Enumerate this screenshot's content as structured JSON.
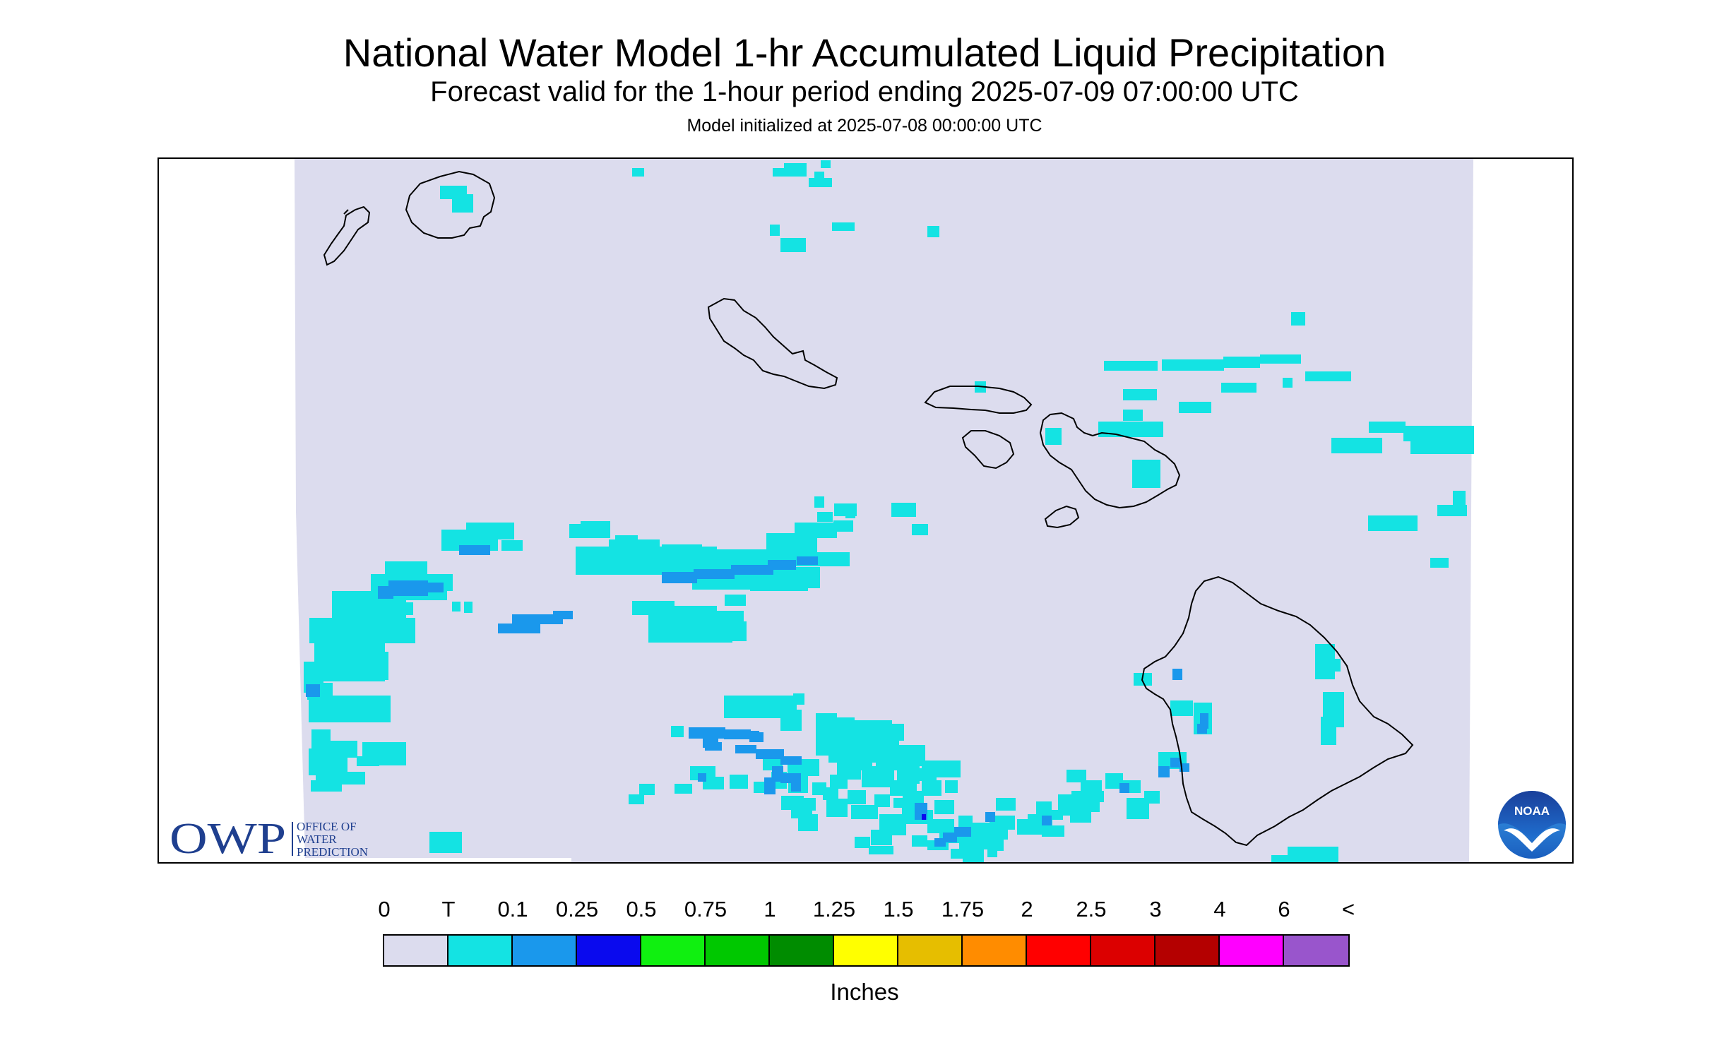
{
  "title": "National Water Model 1-hr Accumulated Liquid Precipitation",
  "subtitle": "Forecast valid for the 1-hour period ending 2025-07-09 07:00:00 UTC",
  "init_text": "Model initialized at 2025-07-08 00:00:00 UTC",
  "colors": {
    "domain": "#dcdcee",
    "trace": "#14e3e3",
    "light": "#1a98ec",
    "blue": "#0a0aee",
    "coastline": "#000000"
  },
  "logos": {
    "owp_short": "OWP",
    "owp_line1": "OFFICE OF",
    "owp_line2": "WATER",
    "owp_line3": "PREDICTION",
    "noaa": "NOAA"
  },
  "legend": {
    "labels": [
      "0",
      "T",
      "0.1",
      "0.25",
      "0.5",
      "0.75",
      "1",
      "1.25",
      "1.5",
      "1.75",
      "2",
      "2.5",
      "3",
      "4",
      "6",
      "<"
    ],
    "colors": [
      "#dcdcee",
      "#14e3e3",
      "#1a98ec",
      "#0a0aee",
      "#10f010",
      "#00c800",
      "#008c00",
      "#ffff00",
      "#e6be00",
      "#ff8c00",
      "#ff0000",
      "#dc0000",
      "#b40000",
      "#ff00ff",
      "#9955cc"
    ],
    "units": "Inches"
  }
}
